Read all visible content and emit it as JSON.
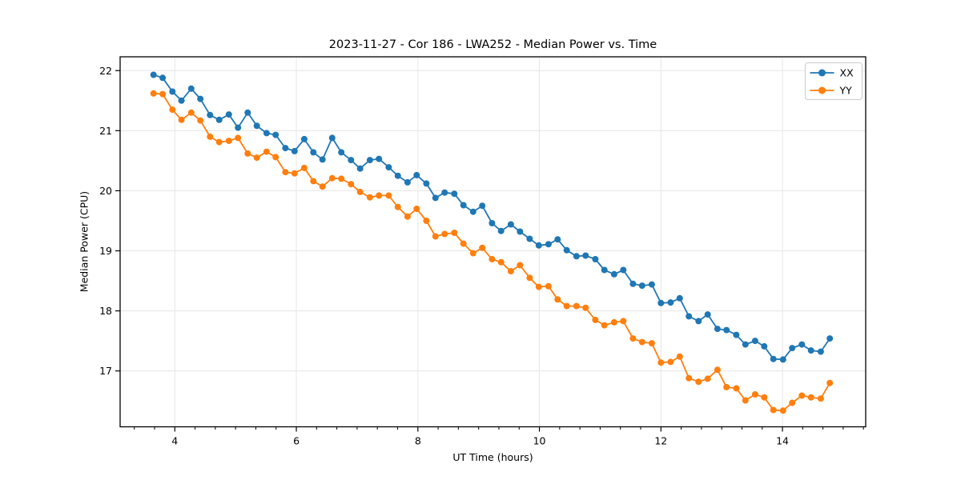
{
  "chart": {
    "title": "2023-11-27 - Cor 186 - LWA252 - Median Power vs. Time",
    "xlabel": "UT Time (hours)",
    "ylabel": "Median Power (CPU)"
  },
  "legend": {
    "entries": [
      {
        "label": "XX",
        "color": "#1f77b4"
      },
      {
        "label": "YY",
        "color": "#ff7f0e"
      }
    ],
    "position": "upper right"
  },
  "colors": {
    "background": "#ffffff",
    "grid": "#e6e6e6",
    "spine": "#000000",
    "tick_text": "#000000",
    "series_xx": "#1f77b4",
    "series_yy": "#ff7f0e",
    "legend_border": "#cccccc"
  },
  "chart_data": {
    "type": "line",
    "title": "2023-11-27 - Cor 186 - LWA252 - Median Power vs. Time",
    "xlabel": "UT Time (hours)",
    "ylabel": "Median Power (CPU)",
    "xlim": [
      3.1,
      15.37
    ],
    "ylim": [
      16.07,
      22.23
    ],
    "x_ticks": [
      4,
      6,
      8,
      10,
      12,
      14
    ],
    "y_ticks": [
      17,
      18,
      19,
      20,
      21,
      22
    ],
    "x_minor_tick_step": 0.33333,
    "grid": true,
    "legend_position": "upper right",
    "marker": "circle",
    "x": [
      3.65,
      3.8,
      3.96,
      4.11,
      4.27,
      4.42,
      4.58,
      4.73,
      4.89,
      5.04,
      5.2,
      5.35,
      5.51,
      5.66,
      5.82,
      5.97,
      6.13,
      6.28,
      6.43,
      6.59,
      6.74,
      6.9,
      7.05,
      7.21,
      7.36,
      7.52,
      7.67,
      7.83,
      7.98,
      8.14,
      8.29,
      8.44,
      8.6,
      8.75,
      8.91,
      9.06,
      9.22,
      9.37,
      9.53,
      9.68,
      9.84,
      9.99,
      10.15,
      10.3,
      10.45,
      10.61,
      10.76,
      10.92,
      11.07,
      11.23,
      11.38,
      11.54,
      11.69,
      11.85,
      12.0,
      12.16,
      12.31,
      12.46,
      12.62,
      12.77,
      12.93,
      13.08,
      13.24,
      13.39,
      13.55,
      13.7,
      13.85,
      14.01,
      14.16,
      14.32,
      14.47,
      14.63,
      14.78
    ],
    "series": [
      {
        "name": "XX",
        "color": "#1f77b4",
        "values": [
          21.93,
          21.88,
          21.65,
          21.5,
          21.7,
          21.53,
          21.26,
          21.18,
          21.27,
          21.05,
          21.3,
          21.08,
          20.96,
          20.93,
          20.71,
          20.66,
          20.86,
          20.64,
          20.52,
          20.88,
          20.64,
          20.51,
          20.37,
          20.51,
          20.53,
          20.39,
          20.25,
          20.14,
          20.26,
          20.12,
          19.88,
          19.97,
          19.95,
          19.76,
          19.65,
          19.75,
          19.46,
          19.33,
          19.44,
          19.32,
          19.2,
          19.09,
          19.11,
          19.19,
          19.01,
          18.91,
          18.92,
          18.86,
          18.68,
          18.61,
          18.68,
          18.45,
          18.42,
          18.44,
          18.13,
          18.14,
          18.21,
          17.91,
          17.83,
          17.94,
          17.7,
          17.68,
          17.6,
          17.44,
          17.5,
          17.41,
          17.2,
          17.19,
          17.38,
          17.44,
          17.34,
          17.32,
          17.54
        ]
      },
      {
        "name": "YY",
        "color": "#ff7f0e",
        "values": [
          21.62,
          21.61,
          21.35,
          21.18,
          21.3,
          21.17,
          20.9,
          20.81,
          20.83,
          20.88,
          20.62,
          20.55,
          20.65,
          20.56,
          20.31,
          20.29,
          20.38,
          20.16,
          20.07,
          20.21,
          20.2,
          20.11,
          19.98,
          19.89,
          19.92,
          19.92,
          19.73,
          19.57,
          19.7,
          19.5,
          19.24,
          19.28,
          19.3,
          19.12,
          18.96,
          19.05,
          18.86,
          18.81,
          18.66,
          18.76,
          18.55,
          18.4,
          18.41,
          18.19,
          18.08,
          18.08,
          18.05,
          17.85,
          17.76,
          17.81,
          17.83,
          17.54,
          17.48,
          17.46,
          17.14,
          17.15,
          17.24,
          16.88,
          16.82,
          16.87,
          17.02,
          16.73,
          16.71,
          16.51,
          16.61,
          16.56,
          16.35,
          16.34,
          16.47,
          16.59,
          16.56,
          16.54,
          16.8
        ]
      }
    ]
  },
  "layout_note": "single matplotlib-style line chart with round markers"
}
